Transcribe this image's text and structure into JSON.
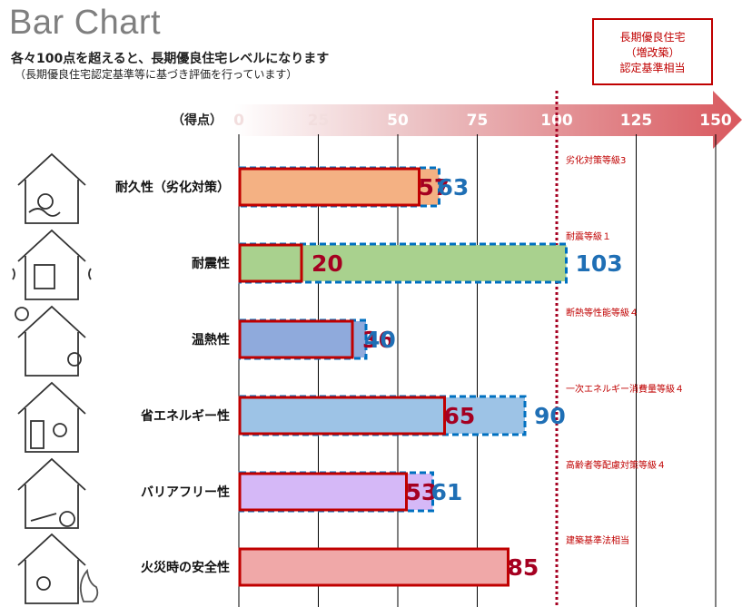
{
  "header": {
    "title": "Bar Chart",
    "subtitle": "各々100点を超えると、長期優良住宅レベルになります",
    "note": "（長期優良住宅認定基準等に基づき評価を行っています）"
  },
  "callout": {
    "lines": [
      "長期優良住宅",
      "（増改築）",
      "認定基準相当"
    ]
  },
  "colors": {
    "before_border": "#c00000",
    "after_border": "#0070c0",
    "before_label": "#a50021",
    "after_label": "#1f6fb5",
    "reference_line": "#a50021",
    "axis_label": "#ffffff"
  },
  "chart_data": {
    "type": "bar",
    "orientation": "horizontal",
    "axis_label": "（得点）",
    "xlim": [
      0,
      150
    ],
    "ticks": [
      0,
      25,
      50,
      75,
      100,
      125,
      150
    ],
    "tick_labels": [
      "0",
      "25",
      "50",
      "75",
      "100",
      "125",
      "150"
    ],
    "reference_value": 100,
    "categories": [
      "耐久性（劣化対策）",
      "耐震性",
      "温熱性",
      "省エネルギー性",
      "バリアフリー性",
      "火災時の安全性"
    ],
    "series": [
      {
        "name": "before",
        "values": [
          57,
          20,
          36,
          65,
          53,
          85
        ]
      },
      {
        "name": "after",
        "values": [
          63,
          103,
          40,
          90,
          61,
          null
        ]
      }
    ],
    "bar_colors": [
      "#f4b183",
      "#a9d18e",
      "#8faadc",
      "#9dc3e6",
      "#d5b8f7",
      "#f0a8a8"
    ],
    "annotations": [
      "劣化対策等級3",
      "耐震等級１",
      "断熱等性能等級４",
      "一次エネルギー消費量等級４",
      "高齢者等配慮対策等級４",
      "建築基準法相当"
    ]
  },
  "icons": [
    "house-durability-icon",
    "house-earthquake-icon",
    "house-thermal-icon",
    "house-energy-icon",
    "house-barrier-free-icon",
    "house-fire-icon"
  ]
}
